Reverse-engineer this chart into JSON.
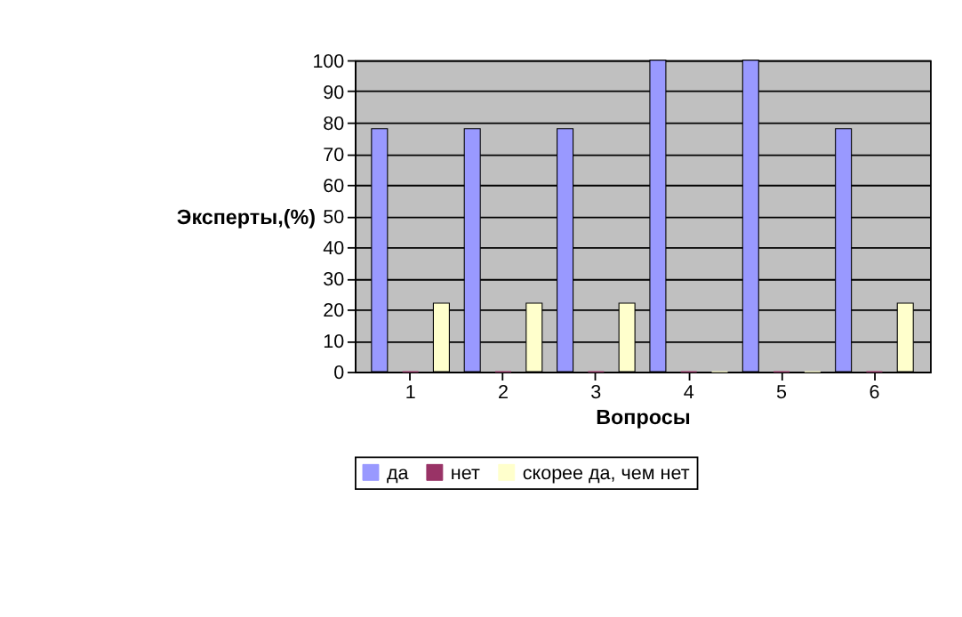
{
  "chart_data": {
    "type": "bar",
    "xlabel": "Вопросы",
    "ylabel": "Эксперты,(%)",
    "categories": [
      "1",
      "2",
      "3",
      "4",
      "5",
      "6"
    ],
    "series": [
      {
        "name": "да",
        "color": "#9999ff",
        "values": [
          78,
          78,
          78,
          100,
          100,
          78
        ]
      },
      {
        "name": "нет",
        "color": "#993366",
        "values": [
          0,
          0,
          0,
          0,
          0,
          0
        ]
      },
      {
        "name": "скорее да, чем нет",
        "color": "#ffffcc",
        "values": [
          22,
          22,
          22,
          0,
          0,
          22
        ]
      }
    ],
    "ylim": [
      0,
      100
    ],
    "yticks": [
      0,
      10,
      20,
      30,
      40,
      50,
      60,
      70,
      80,
      90,
      100
    ],
    "grid": "y",
    "legend": "bottom"
  }
}
